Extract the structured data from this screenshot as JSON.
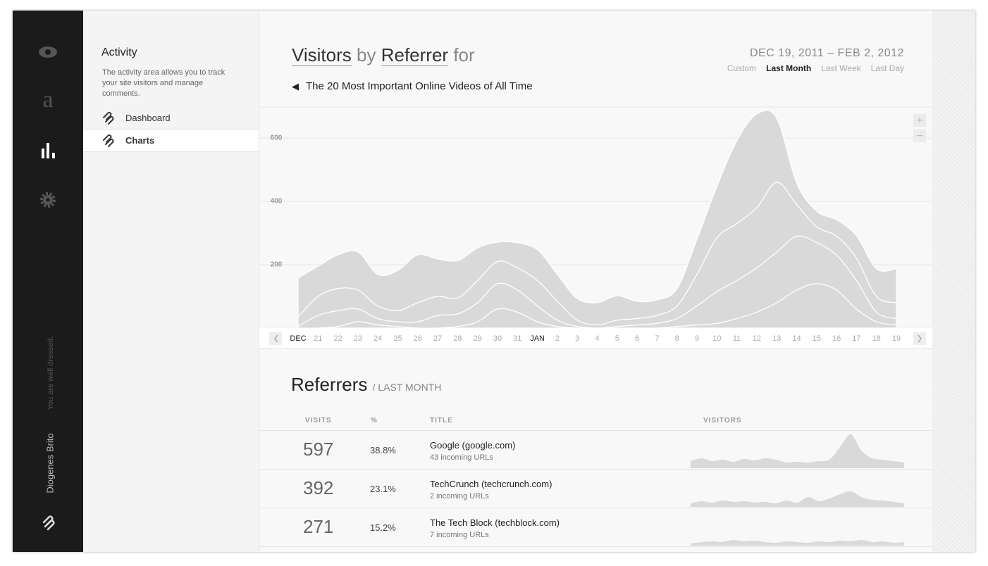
{
  "sidebar": {
    "brand_letter": "a",
    "tagline": "You are well dressed.",
    "user": "Diogenes Brito"
  },
  "subnav": {
    "title": "Activity",
    "description": "The activity area allows you to track your site visitors and manage comments.",
    "items": [
      "Dashboard",
      "Charts"
    ],
    "active": 1
  },
  "header": {
    "title": [
      "Visitors",
      "by",
      "Referrer",
      "for"
    ],
    "date_range": "DEC 19, 2011 – FEB 2, 2012",
    "ranges": [
      "Custom",
      "Last Month",
      "Last Week",
      "Last Day"
    ],
    "active_range": 1,
    "back_title": "The 20 Most Important Online Videos of All Time"
  },
  "zoom": [
    "+",
    "−"
  ],
  "chart_data": {
    "type": "area",
    "stacked": true,
    "categories": [
      "DEC",
      "21",
      "22",
      "23",
      "24",
      "25",
      "26",
      "27",
      "28",
      "29",
      "30",
      "31",
      "JAN",
      "2",
      "3",
      "4",
      "5",
      "6",
      "7",
      "8",
      "9",
      "10",
      "11",
      "12",
      "13",
      "14",
      "15",
      "16",
      "17",
      "18",
      "19"
    ],
    "series": [
      {
        "color": "#d9d9d9",
        "values": [
          0,
          0,
          5,
          20,
          10,
          5,
          0,
          0,
          5,
          20,
          60,
          50,
          20,
          5,
          0,
          0,
          0,
          0,
          0,
          5,
          10,
          15,
          30,
          50,
          80,
          120,
          140,
          120,
          60,
          20,
          10
        ]
      },
      {
        "color": "#d9d9d9",
        "values": [
          5,
          40,
          50,
          40,
          20,
          15,
          20,
          40,
          40,
          60,
          80,
          70,
          50,
          20,
          5,
          0,
          5,
          10,
          15,
          25,
          60,
          100,
          120,
          140,
          160,
          170,
          130,
          110,
          90,
          30,
          20
        ]
      },
      {
        "color": "#d9d9d9",
        "values": [
          30,
          60,
          70,
          60,
          40,
          35,
          60,
          60,
          50,
          70,
          70,
          70,
          80,
          60,
          20,
          10,
          20,
          20,
          25,
          40,
          100,
          170,
          180,
          190,
          220,
          100,
          50,
          60,
          70,
          50,
          50
        ]
      },
      {
        "color": "#d9d9d9",
        "values": [
          123,
          95,
          106,
          120,
          99,
          127,
          151,
          118,
          118,
          103,
          61,
          79,
          97,
          84,
          68,
          70,
          77,
          54,
          49,
          54,
          110,
          162,
          261,
          296,
          202,
          68,
          49,
          52,
          71,
          87,
          107
        ]
      }
    ],
    "ylim": [
      0,
      700
    ],
    "yticks": [
      200,
      400,
      600
    ],
    "grid": true
  },
  "referrers": {
    "title": "Referrers",
    "subtitle": "/ LAST MONTH",
    "columns": [
      "VISITS",
      "%",
      "TITLE",
      "VISITORS"
    ],
    "rows": [
      {
        "visits": 597,
        "percent": "38.8%",
        "title": "Google (google.com)",
        "urls": "43 incoming URLs",
        "trend": [
          10,
          14,
          10,
          12,
          9,
          13,
          11,
          14,
          12,
          8,
          9,
          8,
          10,
          12,
          30,
          48,
          25,
          14,
          12,
          10,
          8
        ]
      },
      {
        "visits": 392,
        "percent": "23.1%",
        "title": "TechCrunch (techcrunch.com)",
        "urls": "2 incoming URLs",
        "trend": [
          5,
          8,
          6,
          9,
          7,
          8,
          6,
          7,
          5,
          9,
          6,
          14,
          8,
          12,
          18,
          22,
          14,
          10,
          9,
          7,
          5
        ]
      },
      {
        "visits": 271,
        "percent": "15.2%",
        "title": "The Tech Block (techblock.com)",
        "urls": "7 incoming URLs",
        "trend": [
          3,
          5,
          6,
          5,
          8,
          6,
          7,
          5,
          4,
          6,
          5,
          4,
          6,
          5,
          7,
          6,
          8,
          5,
          6,
          4,
          5
        ]
      }
    ]
  }
}
